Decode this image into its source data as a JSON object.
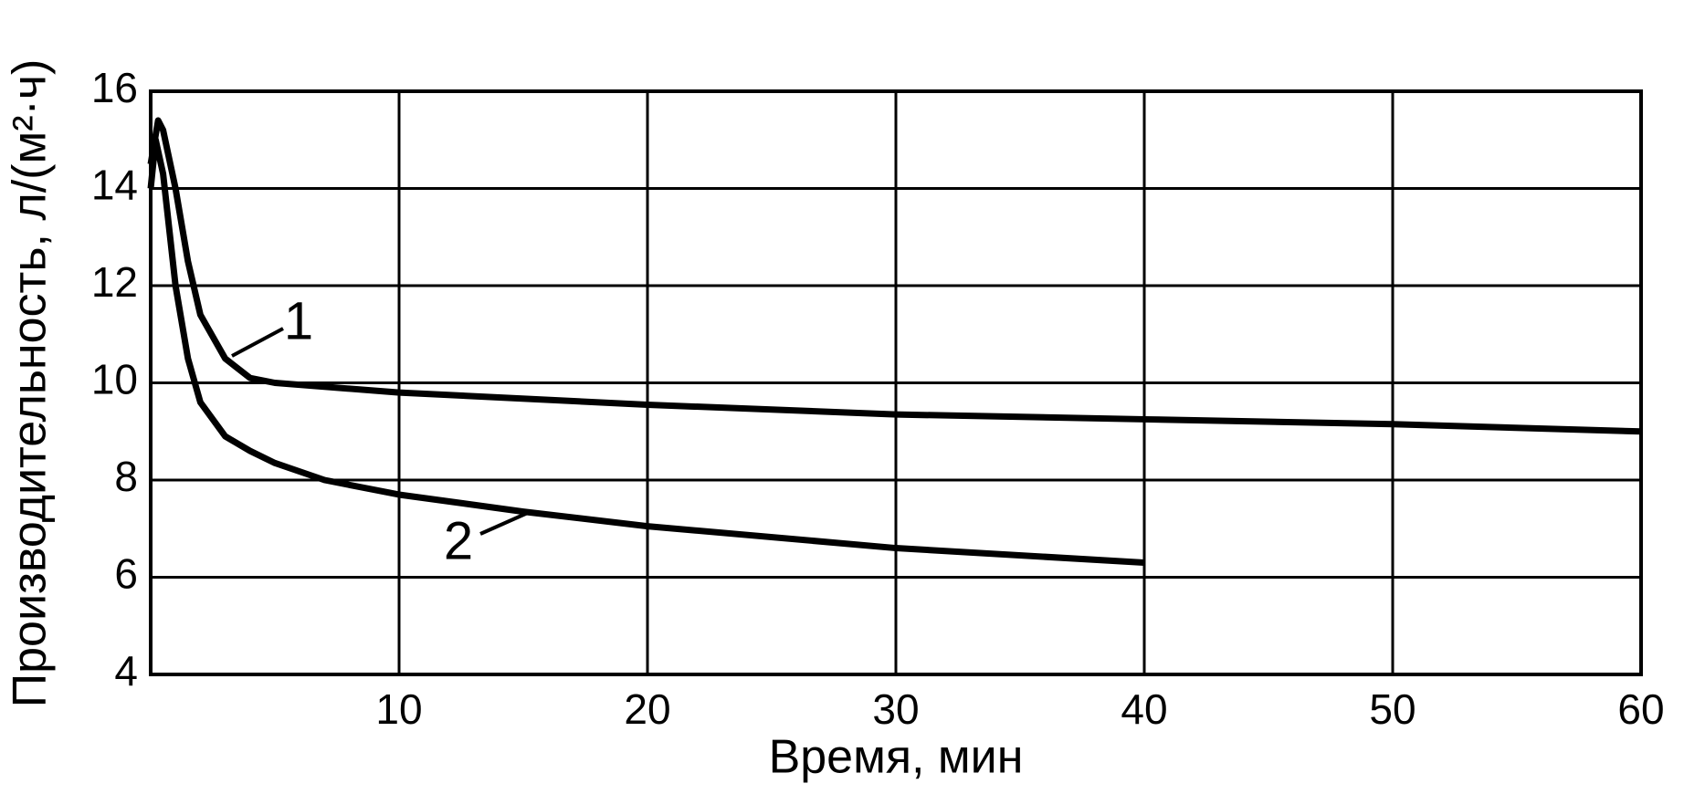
{
  "chart_data": {
    "type": "line",
    "xlabel": "Время, мин",
    "ylabel": "Производительность, л/(м²·ч)",
    "xlim": [
      0,
      60
    ],
    "xticks": [
      10,
      20,
      30,
      40,
      50,
      60
    ],
    "ylim": [
      4,
      16
    ],
    "yticks": [
      4,
      6,
      8,
      10,
      12,
      14,
      16
    ],
    "grid": true,
    "series": [
      {
        "name": "1",
        "color": "#000000",
        "x": [
          0,
          0.3,
          0.5,
          1,
          1.5,
          2,
          3,
          4,
          5,
          10,
          20,
          30,
          40,
          50,
          60
        ],
        "values": [
          14.5,
          15.4,
          15.2,
          14,
          12.5,
          11.4,
          10.5,
          10.1,
          10.0,
          9.8,
          9.55,
          9.35,
          9.25,
          9.15,
          9.0
        ]
      },
      {
        "name": "2",
        "color": "#000000",
        "x": [
          0,
          0.2,
          0.5,
          1,
          1.5,
          2,
          3,
          4,
          5,
          7,
          10,
          15,
          20,
          30,
          40
        ],
        "values": [
          14.0,
          15.0,
          14.3,
          12.0,
          10.5,
          9.6,
          8.9,
          8.6,
          8.35,
          8.0,
          7.7,
          7.35,
          7.05,
          6.6,
          6.3
        ]
      }
    ]
  }
}
